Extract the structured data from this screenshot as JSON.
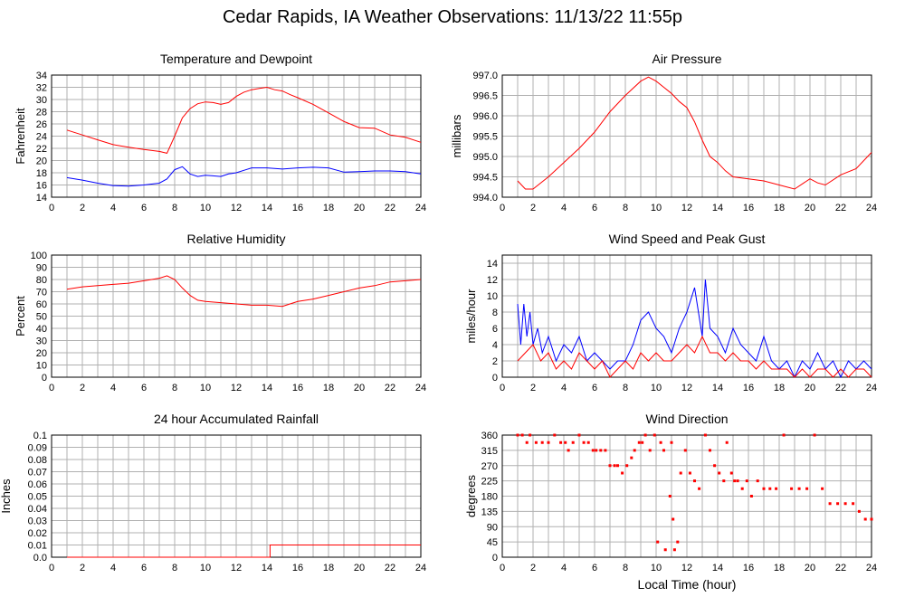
{
  "page": {
    "title": "Cedar Rapids, IA Weather Observations: 11/13/22 11:55p"
  },
  "colors": {
    "red": "#ff0000",
    "blue": "#0000ff",
    "grid": "#b0b0b0"
  },
  "chart_data": [
    {
      "type": "line",
      "title": "Temperature and Dewpoint",
      "ylabel": "Fahrenheit",
      "xlabel": "",
      "xlim": [
        0,
        24
      ],
      "ylim": [
        14,
        34
      ],
      "xticks": [
        2,
        4,
        6,
        8,
        10,
        12,
        14,
        16,
        18,
        20,
        22,
        24
      ],
      "yticks": [
        14,
        16,
        18,
        20,
        22,
        24,
        26,
        28,
        30,
        32,
        34
      ],
      "series": [
        {
          "color": "#ff0000",
          "x": [
            1.0,
            2.0,
            3.0,
            4.0,
            5.0,
            6.0,
            7.0,
            7.5,
            8.0,
            8.5,
            9.0,
            9.5,
            10.0,
            10.5,
            11.0,
            11.5,
            12.0,
            12.5,
            13.0,
            13.5,
            14.0,
            14.5,
            15.0,
            15.5,
            16.0,
            17.0,
            18.0,
            19.0,
            20.0,
            21.0,
            22.0,
            23.0,
            24.0
          ],
          "y": [
            25.0,
            24.2,
            23.4,
            22.6,
            22.2,
            21.8,
            21.5,
            21.2,
            24.0,
            27.0,
            28.5,
            29.3,
            29.6,
            29.5,
            29.2,
            29.5,
            30.5,
            31.2,
            31.6,
            31.8,
            32.0,
            31.6,
            31.4,
            30.8,
            30.3,
            29.2,
            27.8,
            26.4,
            25.4,
            25.3,
            24.2,
            23.8,
            23.0
          ]
        },
        {
          "color": "#0000ff",
          "x": [
            1.0,
            2.0,
            3.0,
            4.0,
            5.0,
            6.0,
            7.0,
            7.5,
            8.0,
            8.5,
            9.0,
            9.5,
            10.0,
            10.5,
            11.0,
            11.5,
            12.0,
            12.5,
            13.0,
            14.0,
            15.0,
            16.0,
            17.0,
            18.0,
            19.0,
            20.0,
            21.0,
            22.0,
            23.0,
            24.0
          ],
          "y": [
            17.2,
            16.8,
            16.3,
            15.9,
            15.8,
            16.0,
            16.3,
            17.0,
            18.5,
            19.0,
            17.8,
            17.4,
            17.6,
            17.5,
            17.4,
            17.8,
            18.0,
            18.4,
            18.8,
            18.8,
            18.6,
            18.8,
            18.9,
            18.8,
            18.1,
            18.2,
            18.3,
            18.3,
            18.2,
            17.8
          ]
        }
      ]
    },
    {
      "type": "line",
      "title": "Air Pressure",
      "ylabel": "millibars",
      "xlabel": "",
      "xlim": [
        0,
        24
      ],
      "ylim": [
        994.0,
        997.0
      ],
      "xticks": [
        2,
        4,
        6,
        8,
        10,
        12,
        14,
        16,
        18,
        20,
        22,
        24
      ],
      "yticks": [
        994.0,
        994.5,
        995.0,
        995.5,
        996.0,
        996.5,
        997.0
      ],
      "series": [
        {
          "color": "#ff0000",
          "x": [
            1.0,
            1.5,
            2.0,
            3.0,
            4.0,
            5.0,
            6.0,
            7.0,
            8.0,
            9.0,
            9.5,
            10.0,
            10.5,
            11.0,
            11.5,
            12.0,
            12.5,
            13.0,
            13.5,
            14.0,
            14.5,
            15.0,
            16.0,
            17.0,
            18.0,
            19.0,
            20.0,
            20.5,
            21.0,
            22.0,
            23.0,
            24.0
          ],
          "y": [
            994.4,
            994.2,
            994.2,
            994.5,
            994.85,
            995.2,
            995.6,
            996.1,
            996.5,
            996.85,
            996.95,
            996.85,
            996.7,
            996.55,
            996.35,
            996.2,
            995.85,
            995.4,
            995.0,
            994.85,
            994.65,
            994.5,
            994.45,
            994.4,
            994.3,
            994.2,
            994.45,
            994.35,
            994.3,
            994.55,
            994.7,
            995.1
          ]
        }
      ]
    },
    {
      "type": "line",
      "title": "Relative Humidity",
      "ylabel": "Percent",
      "xlabel": "",
      "xlim": [
        0,
        24
      ],
      "ylim": [
        0,
        100
      ],
      "xticks": [
        2,
        4,
        6,
        8,
        10,
        12,
        14,
        16,
        18,
        20,
        22,
        24
      ],
      "yticks": [
        0,
        10,
        20,
        30,
        40,
        50,
        60,
        70,
        80,
        90,
        100
      ],
      "series": [
        {
          "color": "#ff0000",
          "x": [
            1.0,
            2.0,
            3.0,
            4.0,
            5.0,
            6.0,
            7.0,
            7.5,
            8.0,
            8.5,
            9.0,
            9.5,
            10.0,
            11.0,
            12.0,
            13.0,
            14.0,
            15.0,
            15.5,
            16.0,
            17.0,
            18.0,
            19.0,
            20.0,
            21.0,
            22.0,
            23.0,
            24.0
          ],
          "y": [
            72,
            74,
            75,
            76,
            77,
            79,
            81,
            83,
            80,
            73,
            67,
            63,
            62,
            61,
            60,
            59,
            59,
            58,
            60,
            62,
            64,
            67,
            70,
            73,
            75,
            78,
            79,
            80
          ]
        }
      ]
    },
    {
      "type": "line",
      "title": "Wind Speed and Peak Gust",
      "ylabel": "miles/hour",
      "xlabel": "",
      "xlim": [
        0,
        24
      ],
      "ylim": [
        0,
        15
      ],
      "xticks": [
        2,
        4,
        6,
        8,
        10,
        12,
        14,
        16,
        18,
        20,
        22,
        24
      ],
      "yticks": [
        0,
        2,
        4,
        6,
        8,
        10,
        12,
        14
      ],
      "series": [
        {
          "color": "#0000ff",
          "x": [
            1.0,
            1.2,
            1.4,
            1.6,
            1.8,
            2.0,
            2.3,
            2.6,
            3.0,
            3.5,
            4.0,
            4.5,
            5.0,
            5.5,
            6.0,
            6.5,
            7.0,
            7.5,
            8.0,
            8.5,
            9.0,
            9.5,
            10.0,
            10.5,
            11.0,
            11.5,
            12.0,
            12.5,
            13.0,
            13.2,
            13.5,
            14.0,
            14.5,
            15.0,
            15.5,
            16.0,
            16.5,
            17.0,
            17.5,
            18.0,
            18.5,
            19.0,
            19.5,
            20.0,
            20.5,
            21.0,
            21.5,
            22.0,
            22.5,
            23.0,
            23.5,
            24.0
          ],
          "y": [
            9,
            4,
            9,
            5,
            8,
            4,
            6,
            3,
            5,
            2,
            4,
            3,
            5,
            2,
            3,
            2,
            1,
            2,
            2,
            4,
            7,
            8,
            6,
            5,
            3,
            6,
            8,
            11,
            5,
            12,
            6,
            5,
            3,
            6,
            4,
            3,
            2,
            5,
            2,
            1,
            2,
            0,
            2,
            1,
            3,
            1,
            2,
            0,
            2,
            1,
            2,
            1
          ]
        },
        {
          "color": "#ff0000",
          "x": [
            1.0,
            1.5,
            2.0,
            2.5,
            3.0,
            3.5,
            4.0,
            4.5,
            5.0,
            5.5,
            6.0,
            6.5,
            7.0,
            7.5,
            8.0,
            8.5,
            9.0,
            9.5,
            10.0,
            10.5,
            11.0,
            11.5,
            12.0,
            12.5,
            13.0,
            13.5,
            14.0,
            14.5,
            15.0,
            15.5,
            16.0,
            16.5,
            17.0,
            17.5,
            18.0,
            18.5,
            19.0,
            19.5,
            20.0,
            20.5,
            21.0,
            21.5,
            22.0,
            22.5,
            23.0,
            23.5,
            24.0
          ],
          "y": [
            2,
            3,
            4,
            2,
            3,
            1,
            2,
            1,
            3,
            2,
            1,
            2,
            0,
            1,
            2,
            1,
            3,
            2,
            3,
            2,
            2,
            3,
            4,
            3,
            5,
            3,
            3,
            2,
            3,
            2,
            2,
            1,
            2,
            1,
            1,
            1,
            0,
            1,
            0,
            1,
            1,
            0,
            1,
            0,
            1,
            1,
            0
          ]
        }
      ]
    },
    {
      "type": "line",
      "title": "24 hour Accumulated Rainfall",
      "ylabel": "Inches",
      "xlabel": "",
      "xlim": [
        0,
        24
      ],
      "ylim": [
        0,
        0.1
      ],
      "xticks": [
        2,
        4,
        6,
        8,
        10,
        12,
        14,
        16,
        18,
        20,
        22,
        24
      ],
      "yticks": [
        0.0,
        0.01,
        0.02,
        0.03,
        0.04,
        0.05,
        0.06,
        0.07,
        0.08,
        0.09,
        0.1
      ],
      "ytick_labels": [
        "0.0",
        "0.01",
        "0.02",
        "0.03",
        "0.04",
        "0.05",
        "0.06",
        "0.07",
        "0.08",
        "0.09",
        "0.1"
      ],
      "series": [
        {
          "color": "#ff0000",
          "x": [
            1.0,
            14.2,
            14.2,
            24.0
          ],
          "y": [
            0.0,
            0.0,
            0.01,
            0.01
          ]
        }
      ]
    },
    {
      "type": "scatter",
      "title": "Wind Direction",
      "ylabel": "degrees",
      "xlabel": "Local Time (hour)",
      "xlim": [
        0,
        24
      ],
      "ylim": [
        0,
        360
      ],
      "xticks": [
        2,
        4,
        6,
        8,
        10,
        12,
        14,
        16,
        18,
        20,
        22,
        24
      ],
      "yticks": [
        0,
        45,
        90,
        135,
        180,
        225,
        270,
        315,
        360
      ],
      "series": [
        {
          "color": "#ff0000",
          "x": [
            1.0,
            1.3,
            1.6,
            1.8,
            2.2,
            2.6,
            3.0,
            3.4,
            3.8,
            4.1,
            4.3,
            4.6,
            5.0,
            5.3,
            5.6,
            5.9,
            6.1,
            6.4,
            6.7,
            7.0,
            7.3,
            7.5,
            7.8,
            8.1,
            8.4,
            8.6,
            8.9,
            9.1,
            9.3,
            9.6,
            9.9,
            10.1,
            10.3,
            10.5,
            10.6,
            10.9,
            11.0,
            11.1,
            11.2,
            11.4,
            11.6,
            11.9,
            12.2,
            12.5,
            12.8,
            13.2,
            13.5,
            13.8,
            14.1,
            14.4,
            14.6,
            14.9,
            15.1,
            15.3,
            15.6,
            15.9,
            16.2,
            16.6,
            17.0,
            17.4,
            17.8,
            18.3,
            18.8,
            19.3,
            19.8,
            20.3,
            20.8,
            21.3,
            21.8,
            22.3,
            22.8,
            23.2,
            23.6,
            24.0
          ],
          "y": [
            360,
            360,
            338,
            360,
            338,
            338,
            338,
            360,
            338,
            338,
            315,
            338,
            360,
            338,
            338,
            315,
            315,
            315,
            315,
            270,
            270,
            270,
            248,
            270,
            293,
            315,
            338,
            338,
            360,
            315,
            360,
            45,
            338,
            315,
            22,
            180,
            338,
            112,
            22,
            45,
            248,
            315,
            248,
            225,
            202,
            360,
            315,
            270,
            248,
            225,
            338,
            248,
            225,
            225,
            202,
            225,
            180,
            225,
            202,
            202,
            202,
            360,
            202,
            202,
            202,
            360,
            202,
            158,
            158,
            158,
            158,
            135,
            112,
            112
          ]
        }
      ]
    }
  ]
}
